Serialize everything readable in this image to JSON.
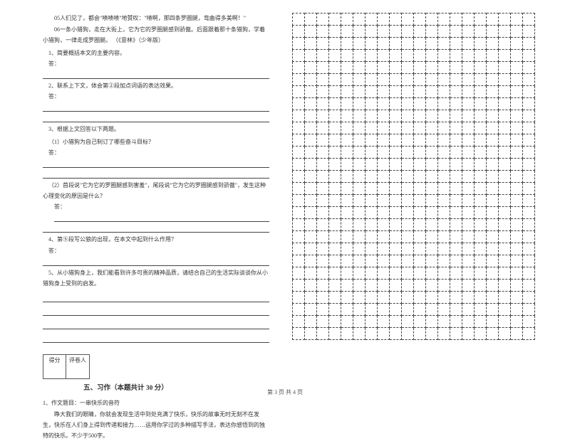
{
  "passage": {
    "p1": "05人们见了，都会\"啧啧啧\"地赞叹：\"啧啊，那四条罗圈腿，弯曲得多美啊！\"",
    "p2": "06一条小猎狗，走在大街上，它为它的罗圈腿感到骄傲。后面跟着那十条猎狗，学着小猎狗，一律走成罗圈腿。    （《意林》（少年版）"
  },
  "questions": {
    "q1": "1、简要概括本文的主要内容。",
    "a_label": "答：",
    "q2": "2、联系上下文，体会第②段加点词语的表达效果。",
    "q3": "3、根据上文回答以下两题。",
    "q3_1": "（1）小猎狗为自己制订了哪些奋斗目标？",
    "q3_2": "（2）首段说\"它为它的罗圈腿感到害羞\"，尾段说\"它为它的罗圈腿感到骄傲\"，发生这种心理变化的原因是什么？",
    "q4": "4、第⑤段写公狼的出现，在本文中起到什么作用？",
    "q5": "5、从小猎狗身上，我们能看到许多可贵的精神品质，请结合自己的生活实际谈谈你从小猎狗身上受到的启发。"
  },
  "score": {
    "h1": "得分",
    "h2": "评卷人"
  },
  "section5": {
    "title": "五、习作（本题共计 30 分）"
  },
  "essay": {
    "t": "1、作文题目：一串快乐的音符",
    "body": "睁大我们的眼睛，你就会发现生活中到处充满了快乐，快乐的故事无时无刻不在发生，快乐在人们身上得到传递和接力……运用你学过的多种描写手法，表达你感悟到的独特的快乐。不少于500字。"
  },
  "grid": {
    "cols": 20,
    "rows": 27
  },
  "footer": "第 3 页 共 4 页"
}
